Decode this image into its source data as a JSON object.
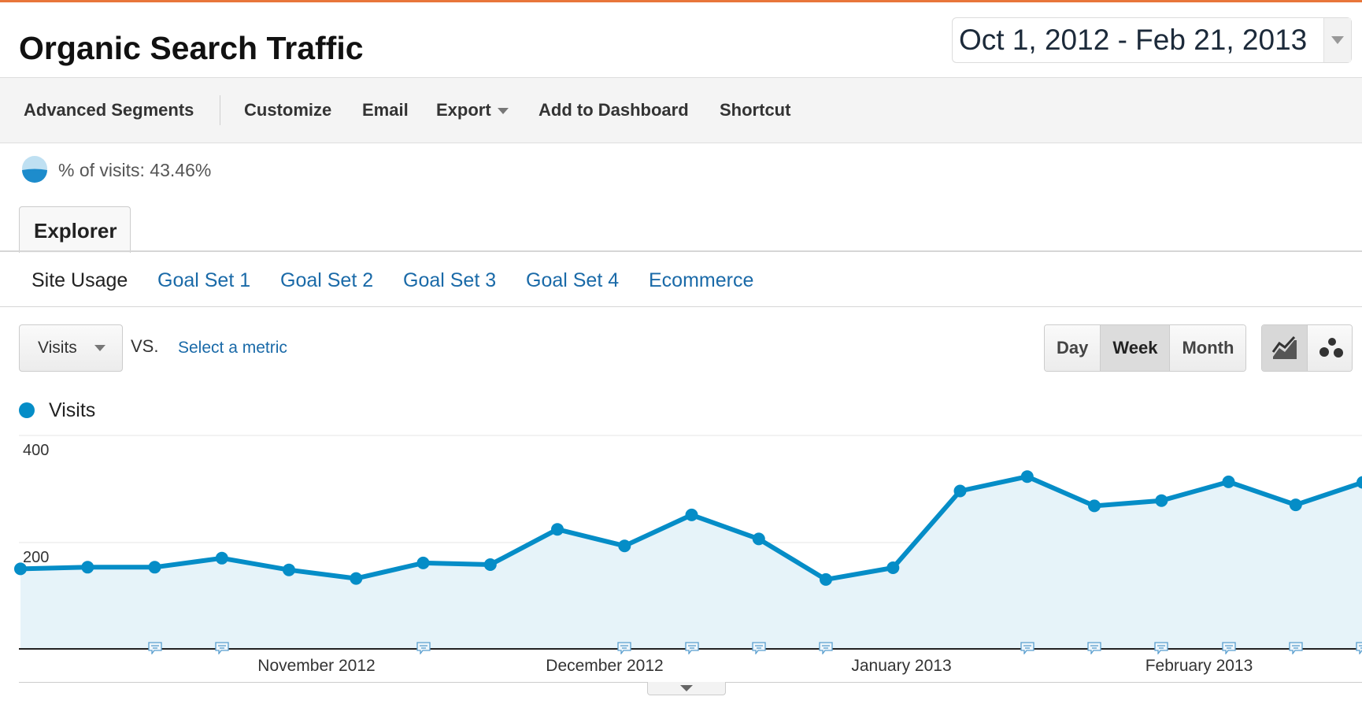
{
  "report": {
    "title": "Organic Search Traffic",
    "date_range": "Oct 1, 2012 - Feb 21, 2013"
  },
  "toolbar": {
    "advanced_segments": "Advanced Segments",
    "customize": "Customize",
    "email": "Email",
    "export": "Export",
    "add_to_dashboard": "Add to Dashboard",
    "shortcut": "Shortcut"
  },
  "segment": {
    "label": "% of visits: 43.46%",
    "percent": 43.46
  },
  "tabs": {
    "explorer": "Explorer"
  },
  "subtabs": {
    "site_usage": "Site Usage",
    "goal_set_1": "Goal Set 1",
    "goal_set_2": "Goal Set 2",
    "goal_set_3": "Goal Set 3",
    "goal_set_4": "Goal Set 4",
    "ecommerce": "Ecommerce"
  },
  "controls": {
    "metric": "Visits",
    "vs": "VS.",
    "select_metric": "Select a metric",
    "day": "Day",
    "week": "Week",
    "month": "Month",
    "selected_granularity": "Week",
    "line_chart_icon": "line-chart-icon",
    "motion_chart_icon": "motion-chart-icon"
  },
  "colors": {
    "accent": "#058dc7",
    "area": "#e6f3f9",
    "link": "#1a6aa8"
  },
  "chart_data": {
    "type": "area",
    "legend": [
      "Visits"
    ],
    "y_ticks": [
      "400",
      "200"
    ],
    "ylim": [
      0,
      400
    ],
    "x_tick_labels": [
      "November 2012",
      "December 2012",
      "January 2013",
      "February 2013"
    ],
    "series": [
      {
        "name": "Visits",
        "x": [
          "Oct 1, 2012",
          "Oct 7, 2012",
          "Oct 14, 2012",
          "Oct 21, 2012",
          "Oct 28, 2012",
          "Nov 4, 2012",
          "Nov 11, 2012",
          "Nov 18, 2012",
          "Nov 25, 2012",
          "Dec 2, 2012",
          "Dec 9, 2012",
          "Dec 16, 2012",
          "Dec 23, 2012",
          "Dec 30, 2012",
          "Jan 6, 2013",
          "Jan 13, 2013",
          "Jan 20, 2013",
          "Jan 27, 2013",
          "Feb 3, 2013",
          "Feb 10, 2013",
          "Feb 17, 2013"
        ],
        "values": [
          150,
          153,
          153,
          170,
          148,
          132,
          161,
          158,
          224,
          193,
          251,
          206,
          130,
          152,
          296,
          323,
          268,
          278,
          313,
          270,
          312
        ]
      }
    ],
    "annotation_weeks": [
      2,
      3,
      6,
      9,
      10,
      11,
      12,
      15,
      16,
      17,
      18,
      19,
      20
    ]
  }
}
